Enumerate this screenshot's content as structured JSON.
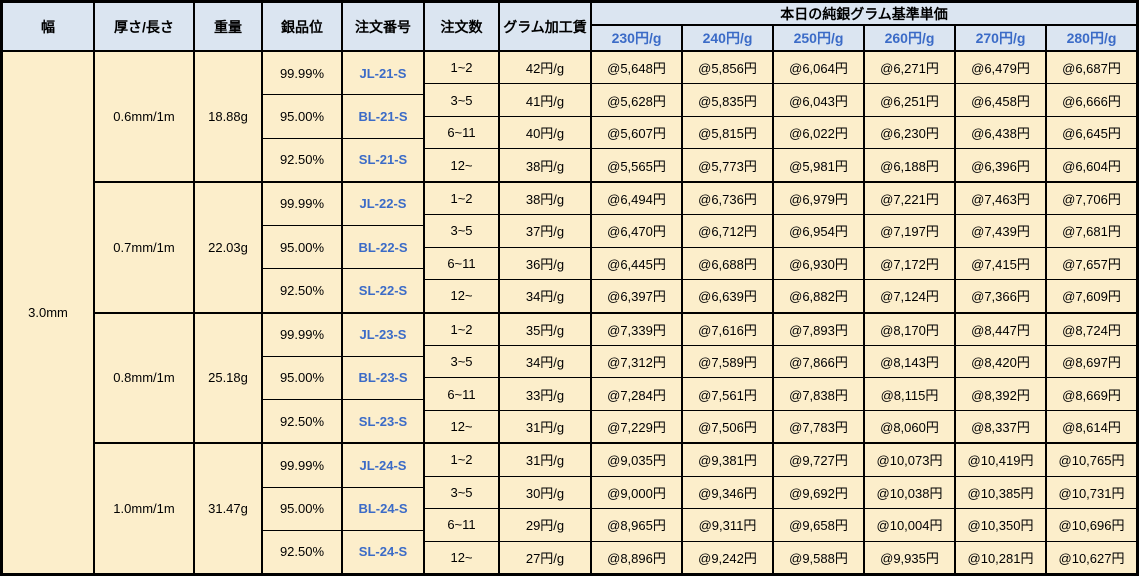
{
  "header": {
    "cols": [
      "幅",
      "厚さ/長さ",
      "重量",
      "銀品位",
      "注文番号",
      "注文数",
      "グラム加工賃"
    ],
    "price_title": "本日の純銀グラム基準単価",
    "rates": [
      "230円/g",
      "240円/g",
      "250円/g",
      "260円/g",
      "270円/g",
      "280円/g"
    ]
  },
  "table": {
    "width": "3.0mm",
    "groups": [
      {
        "thickness": "0.6mm/1m",
        "weight": "18.88g",
        "purities": [
          {
            "purity": "99.99%",
            "code": "JL-21-S"
          },
          {
            "purity": "95.00%",
            "code": "BL-21-S"
          },
          {
            "purity": "92.50%",
            "code": "SL-21-S"
          }
        ],
        "orders": [
          {
            "qty": "1~2",
            "fee": "42円/g",
            "prices": [
              "@5,648円",
              "@5,856円",
              "@6,064円",
              "@6,271円",
              "@6,479円",
              "@6,687円"
            ]
          },
          {
            "qty": "3~5",
            "fee": "41円/g",
            "prices": [
              "@5,628円",
              "@5,835円",
              "@6,043円",
              "@6,251円",
              "@6,458円",
              "@6,666円"
            ]
          },
          {
            "qty": "6~11",
            "fee": "40円/g",
            "prices": [
              "@5,607円",
              "@5,815円",
              "@6,022円",
              "@6,230円",
              "@6,438円",
              "@6,645円"
            ]
          },
          {
            "qty": "12~",
            "fee": "38円/g",
            "prices": [
              "@5,565円",
              "@5,773円",
              "@5,981円",
              "@6,188円",
              "@6,396円",
              "@6,604円"
            ]
          }
        ]
      },
      {
        "thickness": "0.7mm/1m",
        "weight": "22.03g",
        "purities": [
          {
            "purity": "99.99%",
            "code": "JL-22-S"
          },
          {
            "purity": "95.00%",
            "code": "BL-22-S"
          },
          {
            "purity": "92.50%",
            "code": "SL-22-S"
          }
        ],
        "orders": [
          {
            "qty": "1~2",
            "fee": "38円/g",
            "prices": [
              "@6,494円",
              "@6,736円",
              "@6,979円",
              "@7,221円",
              "@7,463円",
              "@7,706円"
            ]
          },
          {
            "qty": "3~5",
            "fee": "37円/g",
            "prices": [
              "@6,470円",
              "@6,712円",
              "@6,954円",
              "@7,197円",
              "@7,439円",
              "@7,681円"
            ]
          },
          {
            "qty": "6~11",
            "fee": "36円/g",
            "prices": [
              "@6,445円",
              "@6,688円",
              "@6,930円",
              "@7,172円",
              "@7,415円",
              "@7,657円"
            ]
          },
          {
            "qty": "12~",
            "fee": "34円/g",
            "prices": [
              "@6,397円",
              "@6,639円",
              "@6,882円",
              "@7,124円",
              "@7,366円",
              "@7,609円"
            ]
          }
        ]
      },
      {
        "thickness": "0.8mm/1m",
        "weight": "25.18g",
        "purities": [
          {
            "purity": "99.99%",
            "code": "JL-23-S"
          },
          {
            "purity": "95.00%",
            "code": "BL-23-S"
          },
          {
            "purity": "92.50%",
            "code": "SL-23-S"
          }
        ],
        "orders": [
          {
            "qty": "1~2",
            "fee": "35円/g",
            "prices": [
              "@7,339円",
              "@7,616円",
              "@7,893円",
              "@8,170円",
              "@8,447円",
              "@8,724円"
            ]
          },
          {
            "qty": "3~5",
            "fee": "34円/g",
            "prices": [
              "@7,312円",
              "@7,589円",
              "@7,866円",
              "@8,143円",
              "@8,420円",
              "@8,697円"
            ]
          },
          {
            "qty": "6~11",
            "fee": "33円/g",
            "prices": [
              "@7,284円",
              "@7,561円",
              "@7,838円",
              "@8,115円",
              "@8,392円",
              "@8,669円"
            ]
          },
          {
            "qty": "12~",
            "fee": "31円/g",
            "prices": [
              "@7,229円",
              "@7,506円",
              "@7,783円",
              "@8,060円",
              "@8,337円",
              "@8,614円"
            ]
          }
        ]
      },
      {
        "thickness": "1.0mm/1m",
        "weight": "31.47g",
        "purities": [
          {
            "purity": "99.99%",
            "code": "JL-24-S"
          },
          {
            "purity": "95.00%",
            "code": "BL-24-S"
          },
          {
            "purity": "92.50%",
            "code": "SL-24-S"
          }
        ],
        "orders": [
          {
            "qty": "1~2",
            "fee": "31円/g",
            "prices": [
              "@9,035円",
              "@9,381円",
              "@9,727円",
              "@10,073円",
              "@10,419円",
              "@10,765円"
            ]
          },
          {
            "qty": "3~5",
            "fee": "30円/g",
            "prices": [
              "@9,000円",
              "@9,346円",
              "@9,692円",
              "@10,038円",
              "@10,385円",
              "@10,731円"
            ]
          },
          {
            "qty": "6~11",
            "fee": "29円/g",
            "prices": [
              "@8,965円",
              "@9,311円",
              "@9,658円",
              "@10,004円",
              "@10,350円",
              "@10,696円"
            ]
          },
          {
            "qty": "12~",
            "fee": "27円/g",
            "prices": [
              "@8,896円",
              "@9,242円",
              "@9,588円",
              "@9,935円",
              "@10,281円",
              "@10,627円"
            ]
          }
        ]
      }
    ]
  },
  "colors": {
    "header_bg": "#DBE5F1",
    "body_bg": "#FCEECB",
    "accent_blue": "#3B6BC7",
    "border": "#000000"
  }
}
